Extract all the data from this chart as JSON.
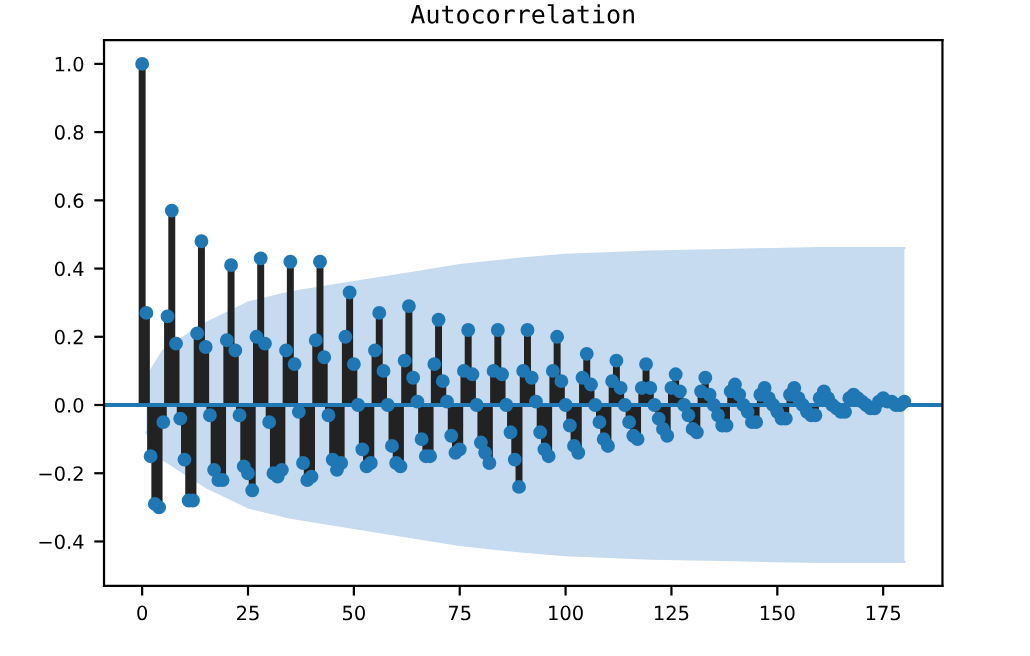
{
  "chart_data": {
    "type": "lollipop",
    "title": "Autocorrelation",
    "xlim": [
      -9,
      189
    ],
    "xticks": [
      0,
      25,
      50,
      75,
      100,
      125,
      150,
      175
    ],
    "ylim": [
      -0.53,
      1.07
    ],
    "yticks": [
      {
        "value": -0.4,
        "label": "−0.4"
      },
      {
        "value": -0.2,
        "label": "−0.2"
      },
      {
        "value": 0,
        "label": "0.0"
      },
      0.2,
      0.4,
      0.6,
      0.8,
      {
        "value": 1,
        "label": "1.0"
      }
    ],
    "grid": false,
    "marker": "circle",
    "ref_lines": [
      {
        "axis": "y",
        "value": 0,
        "color": "#1f77b4",
        "line_style": "solid"
      }
    ],
    "series": [
      {
        "type": "area",
        "color": "#c6dbef",
        "marker": "none",
        "x": [
          1,
          5,
          10,
          15,
          20,
          25,
          35,
          50,
          65,
          75,
          90,
          100,
          120,
          140,
          160,
          180
        ],
        "values": [
          0.08,
          0.16,
          0.2,
          0.24,
          0.27,
          0.3,
          0.33,
          0.36,
          0.39,
          0.41,
          0.43,
          0.44,
          0.45,
          0.455,
          0.46,
          0.46
        ]
      },
      {
        "type": "area",
        "color": "#c6dbef",
        "marker": "none",
        "x": [
          1,
          5,
          10,
          15,
          20,
          25,
          35,
          50,
          65,
          75,
          90,
          100,
          120,
          140,
          160,
          180
        ],
        "values": [
          -0.08,
          -0.16,
          -0.2,
          -0.24,
          -0.27,
          -0.3,
          -0.33,
          -0.36,
          -0.39,
          -0.41,
          -0.43,
          -0.44,
          -0.45,
          -0.455,
          -0.46,
          -0.46
        ]
      },
      {
        "color": "#1f77b4",
        "x": [
          0,
          1,
          2,
          3,
          4,
          5,
          6,
          7,
          8,
          9,
          10,
          11,
          12,
          13,
          14,
          15,
          16,
          17,
          18,
          19,
          20,
          21,
          22,
          23,
          24,
          25,
          26,
          27,
          28,
          29,
          30,
          31,
          32,
          33,
          34,
          35,
          36,
          37,
          38,
          39,
          40,
          41,
          42,
          43,
          44,
          45,
          46,
          47,
          48,
          49,
          50,
          51,
          52,
          53,
          54,
          55,
          56,
          57,
          58,
          59,
          60,
          61,
          62,
          63,
          64,
          65,
          66,
          67,
          68,
          69,
          70,
          71,
          72,
          73,
          74,
          75,
          76,
          77,
          78,
          79,
          80,
          81,
          82,
          83,
          84,
          85,
          86,
          87,
          88,
          89,
          90,
          91,
          92,
          93,
          94,
          95,
          96,
          97,
          98,
          99,
          100,
          101,
          102,
          103,
          104,
          105,
          106,
          107,
          108,
          109,
          110,
          111,
          112,
          113,
          114,
          115,
          116,
          117,
          118,
          119,
          120,
          121,
          122,
          123,
          124,
          125,
          126,
          127,
          128,
          129,
          130,
          131,
          132,
          133,
          134,
          135,
          136,
          137,
          138,
          139,
          140,
          141,
          142,
          143,
          144,
          145,
          146,
          147,
          148,
          149,
          150,
          151,
          152,
          153,
          154,
          155,
          156,
          157,
          158,
          159,
          160,
          161,
          162,
          163,
          164,
          165,
          166,
          167,
          168,
          169,
          170,
          171,
          172,
          173,
          174,
          175,
          176,
          177,
          178,
          179,
          180
        ],
        "values": [
          1.0,
          0.27,
          -0.15,
          -0.29,
          -0.3,
          -0.05,
          0.26,
          0.57,
          0.18,
          -0.04,
          -0.16,
          -0.28,
          -0.28,
          0.21,
          0.48,
          0.17,
          -0.03,
          -0.19,
          -0.22,
          -0.22,
          0.19,
          0.41,
          0.16,
          -0.03,
          -0.18,
          -0.2,
          -0.25,
          0.2,
          0.43,
          0.18,
          -0.05,
          -0.2,
          -0.21,
          -0.19,
          0.16,
          0.42,
          0.12,
          -0.02,
          -0.17,
          -0.22,
          -0.21,
          0.19,
          0.42,
          0.14,
          -0.03,
          -0.16,
          -0.19,
          -0.17,
          0.2,
          0.33,
          0.12,
          0.0,
          -0.13,
          -0.18,
          -0.17,
          0.16,
          0.27,
          0.1,
          0.0,
          -0.12,
          -0.17,
          -0.18,
          0.13,
          0.29,
          0.08,
          0.01,
          -0.1,
          -0.15,
          -0.15,
          0.12,
          0.25,
          0.07,
          0.01,
          -0.09,
          -0.14,
          -0.13,
          0.1,
          0.22,
          0.09,
          0.0,
          -0.11,
          -0.14,
          -0.17,
          0.1,
          0.22,
          0.09,
          0.0,
          -0.08,
          -0.16,
          -0.24,
          0.1,
          0.22,
          0.08,
          0.01,
          -0.08,
          -0.13,
          -0.15,
          0.1,
          0.2,
          0.07,
          0.0,
          -0.06,
          -0.12,
          -0.14,
          0.08,
          0.15,
          0.06,
          0.0,
          -0.05,
          -0.1,
          -0.12,
          0.07,
          0.13,
          0.05,
          0.0,
          -0.05,
          -0.09,
          -0.1,
          0.05,
          0.12,
          0.05,
          0.0,
          -0.04,
          -0.07,
          -0.09,
          0.05,
          0.09,
          0.04,
          0.0,
          -0.03,
          -0.07,
          -0.08,
          0.04,
          0.08,
          0.03,
          0.0,
          -0.03,
          -0.06,
          -0.06,
          0.04,
          0.06,
          0.03,
          0.0,
          -0.02,
          -0.05,
          -0.05,
          0.03,
          0.05,
          0.02,
          0.0,
          -0.02,
          -0.04,
          -0.04,
          0.03,
          0.05,
          0.02,
          0.0,
          -0.02,
          -0.03,
          -0.03,
          0.02,
          0.04,
          0.02,
          0.0,
          -0.01,
          -0.02,
          -0.02,
          0.02,
          0.03,
          0.02,
          0.01,
          0.0,
          -0.01,
          -0.01,
          0.01,
          0.02,
          0.01,
          0.01,
          0.0,
          0.0,
          0.01
        ]
      }
    ]
  }
}
